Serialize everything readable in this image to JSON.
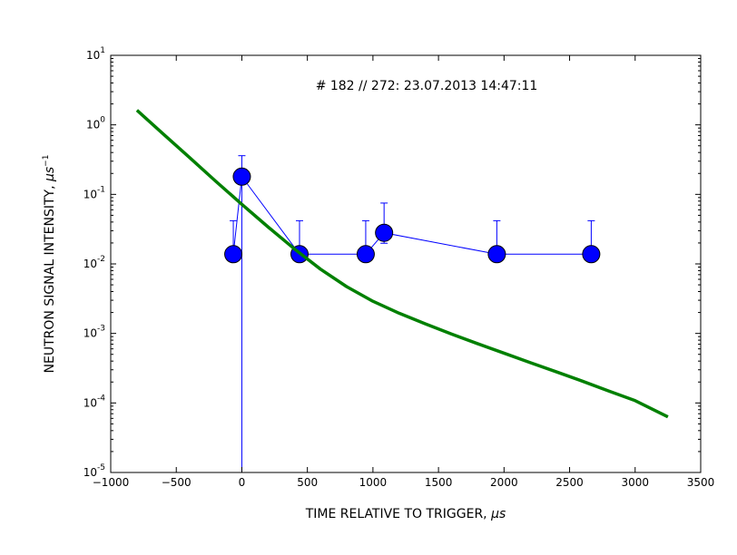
{
  "chart_data": {
    "type": "scatter",
    "title": "",
    "annotation": "# 182 // 272: 23.07.2013 14:47:11",
    "xlabel": "TIME RELATIVE TO TRIGGER, ",
    "xlabel_unit": "μs",
    "ylabel": "NEUTRON SIGNAL INTENSITY, ",
    "ylabel_unit": "μs",
    "ylabel_unit_exponent": "−1",
    "xlim": [
      -1000,
      3500
    ],
    "ylim": [
      1e-05,
      10
    ],
    "yscale": "log",
    "grid": false,
    "x_ticks": [
      {
        "value": -1000,
        "label": "−1000"
      },
      {
        "value": -500,
        "label": "−500"
      },
      {
        "value": 0,
        "label": "0"
      },
      {
        "value": 500,
        "label": "500"
      },
      {
        "value": 1000,
        "label": "1000"
      },
      {
        "value": 1500,
        "label": "1500"
      },
      {
        "value": 2000,
        "label": "2000"
      },
      {
        "value": 2500,
        "label": "2500"
      },
      {
        "value": 3000,
        "label": "3000"
      },
      {
        "value": 3500,
        "label": "3500"
      }
    ],
    "y_ticks": [
      {
        "value": 1e-05,
        "base": "10",
        "exp": "-5"
      },
      {
        "value": 0.0001,
        "base": "10",
        "exp": "-4"
      },
      {
        "value": 0.001,
        "base": "10",
        "exp": "-3"
      },
      {
        "value": 0.01,
        "base": "10",
        "exp": "-2"
      },
      {
        "value": 0.1,
        "base": "10",
        "exp": "-1"
      },
      {
        "value": 1,
        "base": "10",
        "exp": "0"
      },
      {
        "value": 10,
        "base": "10",
        "exp": "1"
      }
    ],
    "series": [
      {
        "type": "errorbar",
        "color": "#0000ff",
        "x": [
          -65,
          0,
          440,
          945,
          1085,
          1945,
          2665
        ],
        "y": [
          0.0138,
          0.18,
          0.0138,
          0.0138,
          0.028,
          0.0138,
          0.0138
        ],
        "yerr_low": [
          0.00072,
          0.18,
          0.00072,
          0.00072,
          0.0082,
          0.00072,
          0.00072
        ],
        "yerr_high": [
          0.028,
          0.18,
          0.028,
          0.028,
          0.047,
          0.028,
          0.028
        ]
      },
      {
        "type": "line",
        "color": "#008000",
        "x": [
          -800,
          -600,
          -400,
          -200,
          0,
          200,
          400,
          600,
          800,
          1000,
          1200,
          1400,
          1600,
          1800,
          2000,
          2200,
          2400,
          2600,
          2800,
          3000,
          3250
        ],
        "y": [
          1.62,
          0.74,
          0.34,
          0.155,
          0.072,
          0.034,
          0.0165,
          0.0084,
          0.0047,
          0.0029,
          0.00195,
          0.00137,
          0.00098,
          0.00071,
          0.00052,
          0.00038,
          0.00028,
          0.000205,
          0.000148,
          0.000108,
          6.3e-05
        ]
      }
    ]
  }
}
